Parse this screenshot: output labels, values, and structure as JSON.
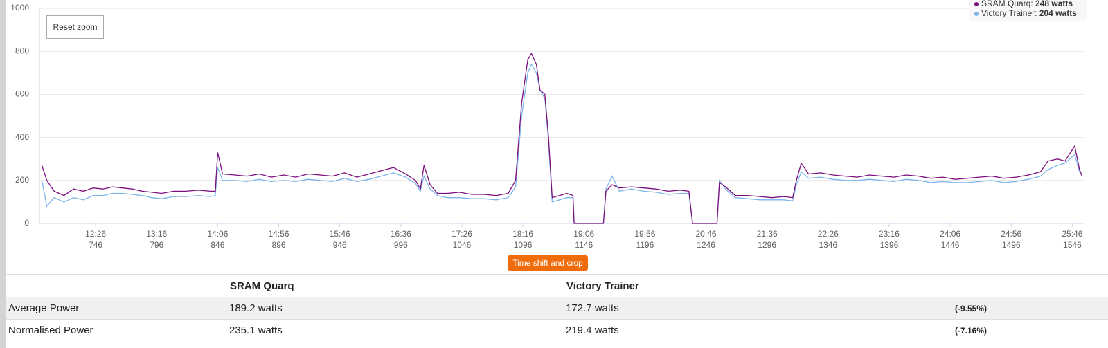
{
  "chart_data": {
    "type": "line",
    "ylim": [
      0,
      1000
    ],
    "yticks": [
      0,
      200,
      400,
      600,
      800,
      1000
    ],
    "grid": true,
    "xlim": [
      700,
      1556
    ],
    "xticks": [
      746,
      796,
      846,
      896,
      946,
      996,
      1046,
      1096,
      1146,
      1196,
      1246,
      1296,
      1346,
      1396,
      1446,
      1496,
      1546
    ],
    "xtick_time_labels": [
      "12:26",
      "13:16",
      "14:06",
      "14:56",
      "15:46",
      "16:36",
      "17:26",
      "18:16",
      "19:06",
      "19:56",
      "20:46",
      "21:36",
      "22:26",
      "23:16",
      "24:06",
      "24:56",
      "25:46"
    ],
    "x": [
      702,
      706,
      712,
      720,
      728,
      736,
      744,
      752,
      760,
      768,
      776,
      784,
      792,
      800,
      810,
      820,
      830,
      840,
      844,
      846,
      850,
      860,
      870,
      880,
      890,
      900,
      910,
      920,
      930,
      940,
      950,
      960,
      970,
      980,
      990,
      1000,
      1008,
      1012,
      1015,
      1020,
      1026,
      1034,
      1044,
      1054,
      1064,
      1074,
      1084,
      1090,
      1095,
      1100,
      1103,
      1107,
      1110,
      1114,
      1117,
      1120,
      1126,
      1132,
      1137,
      1138,
      1162,
      1164,
      1169,
      1175,
      1185,
      1195,
      1205,
      1215,
      1225,
      1232,
      1235,
      1255,
      1257,
      1262,
      1270,
      1280,
      1290,
      1300,
      1310,
      1317,
      1320,
      1324,
      1330,
      1340,
      1350,
      1360,
      1370,
      1380,
      1390,
      1400,
      1410,
      1420,
      1430,
      1440,
      1450,
      1460,
      1470,
      1480,
      1490,
      1500,
      1510,
      1520,
      1526,
      1534,
      1540,
      1548,
      1552,
      1554
    ],
    "series": [
      {
        "name": "SRAM Quarq",
        "color": "#7b0f7e",
        "values": [
          270,
          200,
          150,
          130,
          160,
          150,
          165,
          160,
          170,
          165,
          160,
          150,
          145,
          140,
          150,
          150,
          155,
          150,
          150,
          330,
          230,
          225,
          220,
          230,
          215,
          225,
          215,
          230,
          225,
          220,
          235,
          215,
          230,
          245,
          260,
          230,
          200,
          160,
          270,
          180,
          140,
          140,
          145,
          135,
          135,
          130,
          140,
          200,
          560,
          760,
          790,
          740,
          620,
          600,
          400,
          120,
          130,
          140,
          130,
          0,
          0,
          150,
          180,
          165,
          170,
          165,
          160,
          150,
          155,
          150,
          0,
          0,
          190,
          170,
          130,
          130,
          125,
          120,
          125,
          120,
          200,
          280,
          230,
          235,
          225,
          220,
          215,
          225,
          220,
          215,
          225,
          220,
          210,
          215,
          205,
          210,
          215,
          220,
          210,
          215,
          225,
          240,
          290,
          300,
          290,
          360,
          250,
          220
        ]
      },
      {
        "name": "Victory Trainer",
        "color": "#7cb5ec",
        "values": [
          200,
          80,
          120,
          100,
          120,
          110,
          130,
          130,
          140,
          140,
          135,
          130,
          120,
          115,
          125,
          125,
          130,
          125,
          130,
          260,
          200,
          200,
          195,
          205,
          195,
          200,
          195,
          205,
          200,
          195,
          210,
          195,
          205,
          220,
          235,
          215,
          185,
          150,
          220,
          160,
          130,
          120,
          120,
          115,
          115,
          110,
          120,
          170,
          500,
          700,
          740,
          700,
          620,
          580,
          380,
          100,
          110,
          120,
          120,
          0,
          0,
          160,
          220,
          150,
          160,
          150,
          145,
          135,
          140,
          140,
          0,
          0,
          200,
          160,
          120,
          115,
          110,
          110,
          110,
          105,
          180,
          240,
          210,
          215,
          205,
          200,
          200,
          205,
          200,
          195,
          205,
          200,
          190,
          195,
          190,
          190,
          195,
          200,
          190,
          195,
          205,
          220,
          250,
          270,
          280,
          320,
          240,
          230
        ]
      }
    ]
  },
  "buttons": {
    "reset_zoom": "Reset zoom",
    "time_shift": "Time shift and crop"
  },
  "tooltip": {
    "items": [
      {
        "label": "SRAM Quarq:",
        "value": "248 watts"
      },
      {
        "label": "Victory Trainer:",
        "value": "204 watts"
      }
    ]
  },
  "table": {
    "columns": [
      "SRAM Quarq",
      "Victory Trainer"
    ],
    "rows": [
      {
        "label": "Average Power",
        "values": [
          "189.2 watts",
          "172.7 watts"
        ],
        "diff": "(-9.55%)"
      },
      {
        "label": "Normalised Power",
        "values": [
          "235.1 watts",
          "219.4 watts"
        ],
        "diff": "(-7.16%)"
      }
    ]
  }
}
